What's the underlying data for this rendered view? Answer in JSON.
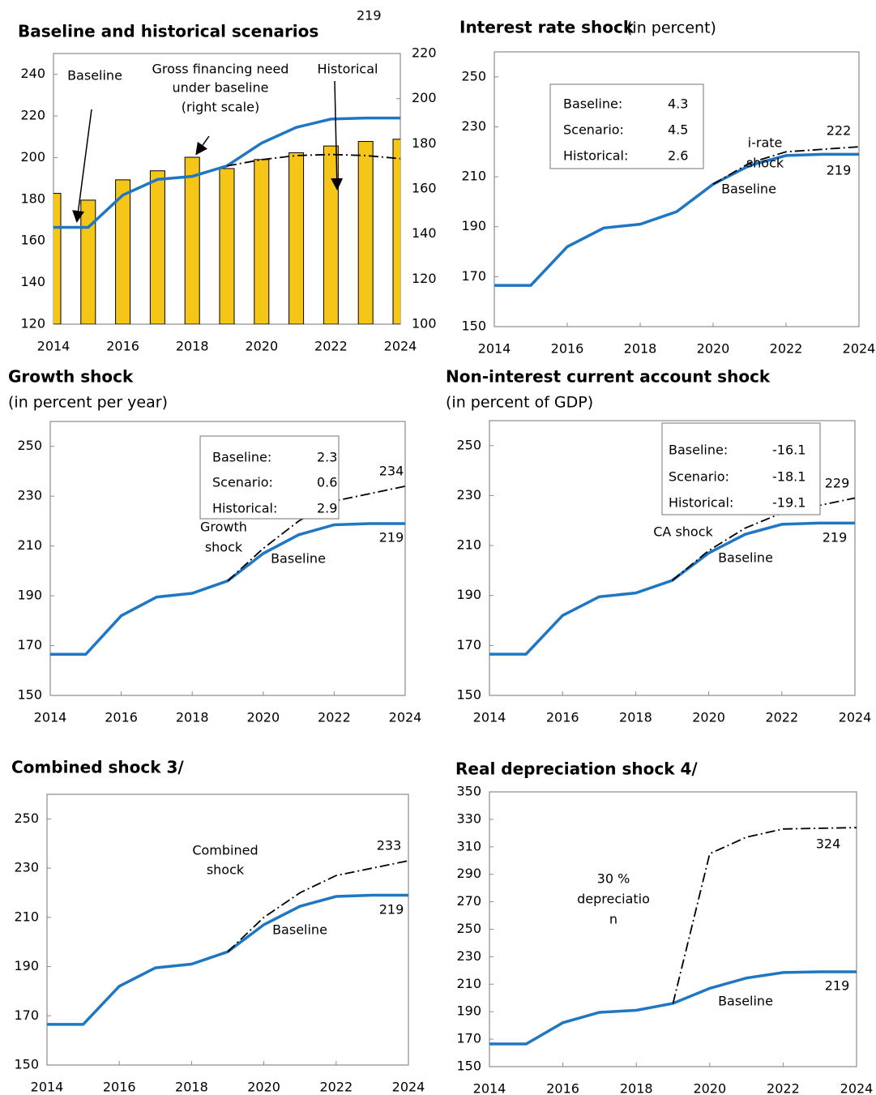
{
  "chart_data": [
    {
      "type": "combo",
      "title": "Baseline and historical scenarios",
      "x": [
        2014,
        2015,
        2016,
        2017,
        2018,
        2019,
        2020,
        2021,
        2022,
        2023,
        2024
      ],
      "xlim": [
        2014,
        2024
      ],
      "xticks": [
        2014,
        2016,
        2018,
        2020,
        2022,
        2024
      ],
      "ylim": [
        120,
        250
      ],
      "yticks": [
        120,
        140,
        160,
        180,
        200,
        220,
        240
      ],
      "y2lim": [
        100,
        220
      ],
      "y2ticks": [
        100,
        120,
        140,
        160,
        180,
        200,
        220
      ],
      "series": [
        {
          "type": "line",
          "style": "solid",
          "color": "#1f77c4",
          "label": [
            "Baseline"
          ],
          "values": [
            166.5,
            166.5,
            182,
            189.5,
            191,
            196,
            207,
            214.5,
            218.5,
            219,
            219
          ]
        },
        {
          "type": "line",
          "style": "dashdot",
          "color": "#000000",
          "label": [
            "Historical"
          ],
          "values": [
            null,
            null,
            null,
            null,
            null,
            196,
            199,
            201,
            201.5,
            201,
            199.5
          ]
        },
        {
          "type": "bar",
          "axis": "y2",
          "color": "#f5c518",
          "label": [
            "Gross financing need",
            "under baseline",
            "(right scale)"
          ],
          "values": [
            158,
            155,
            164,
            168,
            174,
            169,
            173,
            176,
            179,
            181,
            182
          ]
        }
      ]
    },
    {
      "type": "line",
      "title": "Interest rate shock",
      "subtitle": "(in percent)",
      "x": [
        2014,
        2015,
        2016,
        2017,
        2018,
        2019,
        2020,
        2021,
        2022,
        2023,
        2024
      ],
      "xlim": [
        2014,
        2024
      ],
      "xticks": [
        2014,
        2016,
        2018,
        2020,
        2022,
        2024
      ],
      "ylim": [
        150,
        260
      ],
      "yticks": [
        150,
        170,
        190,
        210,
        230,
        250
      ],
      "inset": [
        {
          "label": "Baseline:",
          "value": 4.3
        },
        {
          "label": "Scenario:",
          "value": 4.5
        },
        {
          "label": "Historical:",
          "value": 2.6
        }
      ],
      "series": [
        {
          "type": "line",
          "style": "solid",
          "color": "#1f77c4",
          "label": [
            "Baseline"
          ],
          "values": [
            166.5,
            166.5,
            182,
            189.5,
            191,
            196,
            207,
            214.5,
            218.5,
            219,
            219
          ]
        },
        {
          "type": "line",
          "style": "dashdot",
          "color": "#000000",
          "label": [
            "i-rate",
            "shock"
          ],
          "values": [
            null,
            null,
            null,
            null,
            null,
            null,
            207,
            215.5,
            220,
            221,
            222
          ]
        }
      ]
    },
    {
      "type": "line",
      "title": "Growth shock",
      "subtitle": "(in percent per year)",
      "x": [
        2014,
        2015,
        2016,
        2017,
        2018,
        2019,
        2020,
        2021,
        2022,
        2023,
        2024
      ],
      "xlim": [
        2014,
        2024
      ],
      "xticks": [
        2014,
        2016,
        2018,
        2020,
        2022,
        2024
      ],
      "ylim": [
        150,
        260
      ],
      "yticks": [
        150,
        170,
        190,
        210,
        230,
        250
      ],
      "inset": [
        {
          "label": "Baseline:",
          "value": 2.3
        },
        {
          "label": "Scenario:",
          "value": 0.6
        },
        {
          "label": "Historical:",
          "value": 2.9
        }
      ],
      "series": [
        {
          "type": "line",
          "style": "solid",
          "color": "#1f77c4",
          "label": [
            "Baseline"
          ],
          "values": [
            166.5,
            166.5,
            182,
            189.5,
            191,
            196,
            207,
            214.5,
            218.5,
            219,
            219
          ]
        },
        {
          "type": "line",
          "style": "dashdot",
          "color": "#000000",
          "label": [
            "Growth",
            "shock"
          ],
          "values": [
            null,
            null,
            null,
            null,
            null,
            196,
            209,
            220,
            228,
            231,
            234
          ]
        }
      ]
    },
    {
      "type": "line",
      "title": "Non-interest current account shock",
      "subtitle": "(in percent of GDP)",
      "x": [
        2014,
        2015,
        2016,
        2017,
        2018,
        2019,
        2020,
        2021,
        2022,
        2023,
        2024
      ],
      "xlim": [
        2014,
        2024
      ],
      "xticks": [
        2014,
        2016,
        2018,
        2020,
        2022,
        2024
      ],
      "ylim": [
        150,
        260
      ],
      "yticks": [
        150,
        170,
        190,
        210,
        230,
        250
      ],
      "inset": [
        {
          "label": "Baseline:",
          "value": -16.1
        },
        {
          "label": "Scenario:",
          "value": -18.1
        },
        {
          "label": "Historical:",
          "value": -19.1
        }
      ],
      "series": [
        {
          "type": "line",
          "style": "solid",
          "color": "#1f77c4",
          "label": [
            "Baseline"
          ],
          "values": [
            166.5,
            166.5,
            182,
            189.5,
            191,
            196,
            207,
            214.5,
            218.5,
            219,
            219
          ]
        },
        {
          "type": "line",
          "style": "dashdot",
          "color": "#000000",
          "label": [
            "CA shock"
          ],
          "values": [
            null,
            null,
            null,
            null,
            null,
            196,
            208,
            217,
            223,
            226,
            229
          ]
        }
      ]
    },
    {
      "type": "line",
      "title": "Combined shock  3/",
      "x": [
        2014,
        2015,
        2016,
        2017,
        2018,
        2019,
        2020,
        2021,
        2022,
        2023,
        2024
      ],
      "xlim": [
        2014,
        2024
      ],
      "xticks": [
        2014,
        2016,
        2018,
        2020,
        2022,
        2024
      ],
      "ylim": [
        150,
        260
      ],
      "yticks": [
        150,
        170,
        190,
        210,
        230,
        250
      ],
      "series": [
        {
          "type": "line",
          "style": "solid",
          "color": "#1f77c4",
          "label": [
            "Baseline"
          ],
          "values": [
            166.5,
            166.5,
            182,
            189.5,
            191,
            196,
            207,
            214.5,
            218.5,
            219,
            219
          ]
        },
        {
          "type": "line",
          "style": "dashdot",
          "color": "#000000",
          "label": [
            "Combined",
            "shock"
          ],
          "values": [
            null,
            null,
            null,
            null,
            null,
            196,
            210,
            220,
            227,
            230,
            233
          ]
        }
      ]
    },
    {
      "type": "line",
      "title": "Real depreciation shock  4/",
      "x": [
        2014,
        2015,
        2016,
        2017,
        2018,
        2019,
        2020,
        2021,
        2022,
        2023,
        2024
      ],
      "xlim": [
        2014,
        2024
      ],
      "xticks": [
        2014,
        2016,
        2018,
        2020,
        2022,
        2024
      ],
      "ylim": [
        150,
        350
      ],
      "yticks": [
        150,
        170,
        190,
        210,
        230,
        250,
        270,
        290,
        310,
        330,
        350
      ],
      "series": [
        {
          "type": "line",
          "style": "solid",
          "color": "#1f77c4",
          "label": [
            "Baseline"
          ],
          "values": [
            166.5,
            166.5,
            182,
            189.5,
            191,
            196,
            207,
            214.5,
            218.5,
            219,
            219
          ]
        },
        {
          "type": "line",
          "style": "dashdot",
          "color": "#000000",
          "label": [
            "30 %",
            "depreciatio",
            "n"
          ],
          "values": [
            null,
            null,
            null,
            null,
            null,
            196,
            305,
            317,
            323,
            323.5,
            324
          ]
        }
      ]
    }
  ]
}
